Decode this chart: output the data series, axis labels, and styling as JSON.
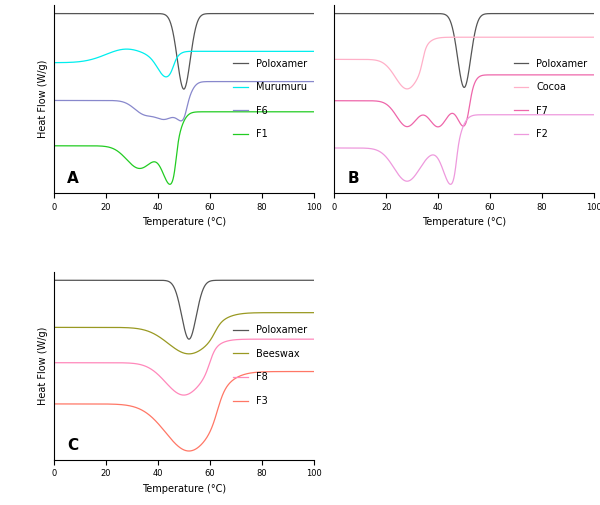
{
  "xlim": [
    0,
    100
  ],
  "xlabel": "Temperature (°C)",
  "ylabel": "Heat Flow (W/g)",
  "panel_A_label": "A",
  "panel_B_label": "B",
  "panel_C_label": "C",
  "colors": {
    "poloxamer": "#555555",
    "murumuru": "#00EEEE",
    "F6": "#8888CC",
    "F1": "#22CC22",
    "cocoa": "#FFB0C8",
    "F7": "#EE66AA",
    "F2": "#EE99DD",
    "beeswax": "#999922",
    "F8": "#FF88BB",
    "F3": "#FF7766"
  },
  "legend_fontsize": 7,
  "label_fontsize": 7,
  "tick_fontsize": 6,
  "panel_label_fontsize": 11
}
